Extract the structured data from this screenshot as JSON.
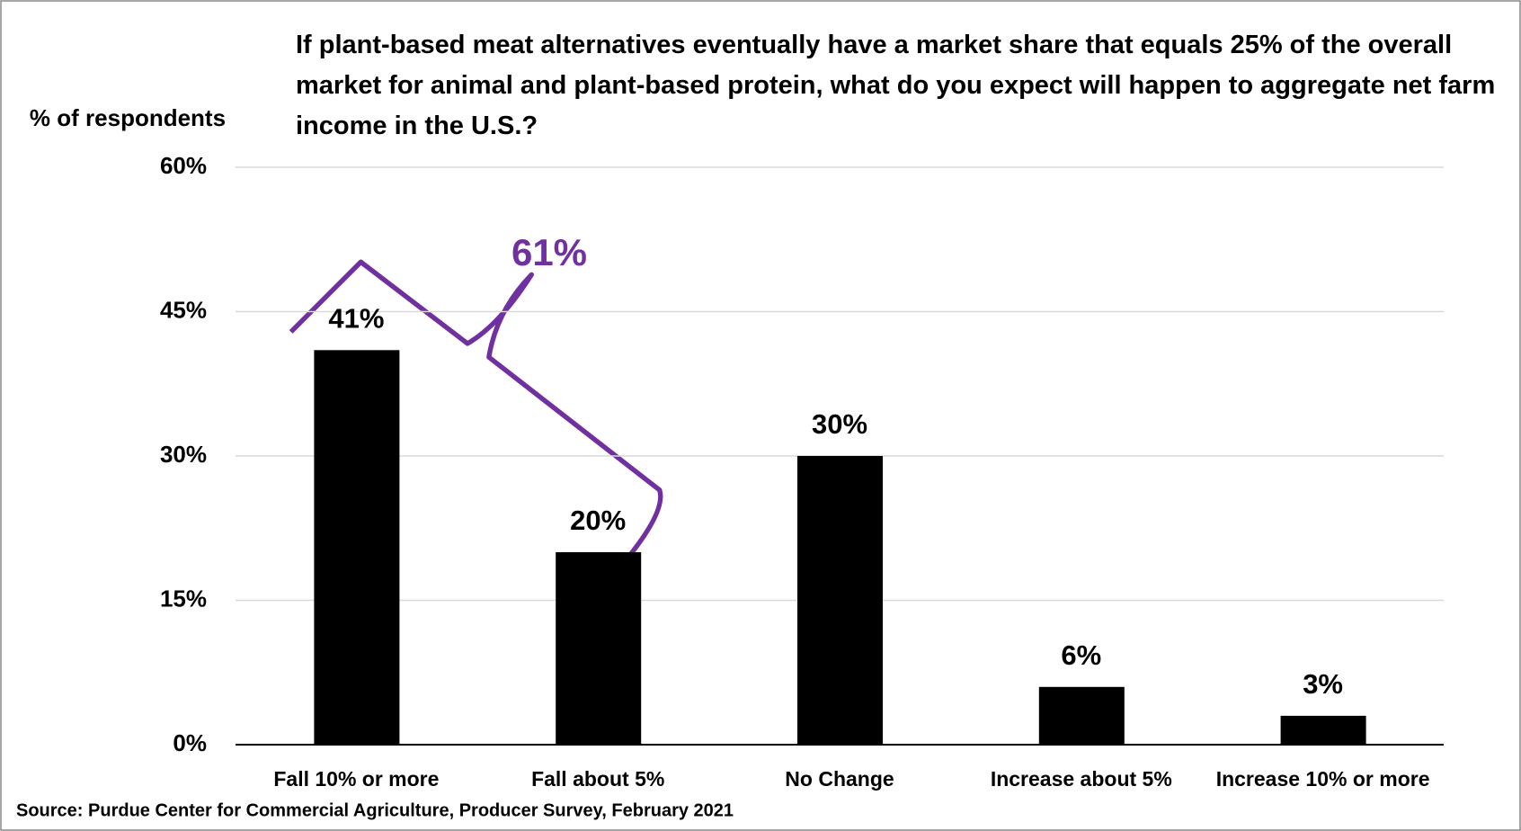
{
  "chart_data": {
    "type": "bar",
    "title": "If plant-based meat alternatives eventually have a market share that equals 25% of the overall market for animal and plant-based protein, what do you expect will happen to aggregate net farm income in the U.S.?",
    "y_axis_label": "% of respondents",
    "source": "Source: Purdue Center for Commercial Agriculture, Producer Survey, February 2021",
    "annotation": "61%",
    "categories": [
      "Fall 10% or more",
      "Fall about 5%",
      "No Change",
      "Increase about 5%",
      "Increase 10% or more"
    ],
    "values": [
      41,
      20,
      30,
      6,
      3
    ],
    "value_labels": [
      "41%",
      "20%",
      "30%",
      "6%",
      "3%"
    ],
    "color": "#000000",
    "annotation_color": "#7030a0",
    "ylim": [
      0,
      60
    ],
    "yticks": [
      {
        "value": 0,
        "label": "0%"
      },
      {
        "value": 15,
        "label": "15%"
      },
      {
        "value": 30,
        "label": "30%"
      },
      {
        "value": 45,
        "label": "45%"
      },
      {
        "value": 60,
        "label": "60%"
      }
    ],
    "grid": true
  }
}
